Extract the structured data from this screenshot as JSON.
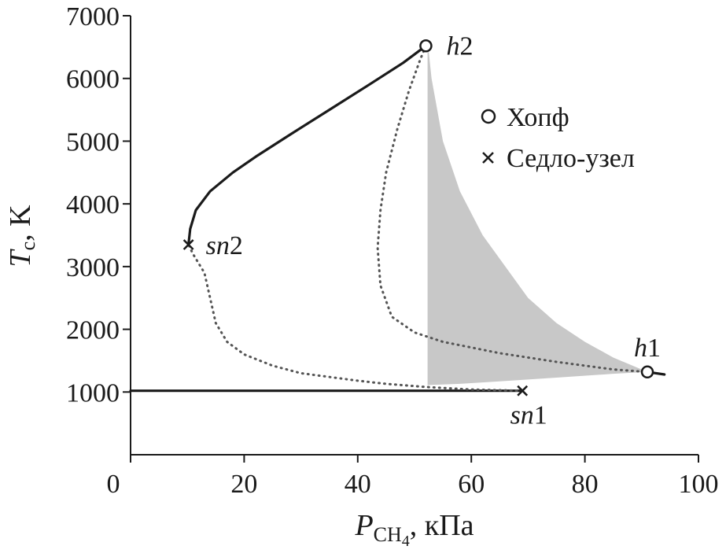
{
  "chart_data": {
    "type": "line",
    "xlabel": {
      "main": "P",
      "sub": "CH",
      "subsub": "4",
      "unit": ", кПа"
    },
    "ylabel": {
      "main": "T",
      "sub": "c",
      "unit": ", K"
    },
    "xlim": [
      0,
      100
    ],
    "ylim": [
      0,
      7000
    ],
    "x_ticks": [
      0,
      20,
      40,
      60,
      80,
      100
    ],
    "y_ticks": [
      1000,
      2000,
      3000,
      4000,
      5000,
      6000,
      7000
    ],
    "grid": false,
    "legend": {
      "placement": "top-right",
      "entries": [
        {
          "marker": "circle",
          "label": "Хопф"
        },
        {
          "marker": "cross",
          "label": "Седло-узел"
        }
      ]
    },
    "series": [
      {
        "style": "solid",
        "color": "#1a1a1a",
        "points": [
          [
            0,
            1020
          ],
          [
            10,
            1020
          ],
          [
            20,
            1020
          ],
          [
            30,
            1020
          ],
          [
            40,
            1020
          ],
          [
            50,
            1020
          ],
          [
            60,
            1020
          ],
          [
            69,
            1020
          ]
        ]
      },
      {
        "style": "dotted",
        "color": "#555555",
        "points": [
          [
            69,
            1020
          ],
          [
            60,
            1040
          ],
          [
            52,
            1080
          ],
          [
            45,
            1130
          ],
          [
            40,
            1180
          ],
          [
            30,
            1300
          ],
          [
            25,
            1420
          ],
          [
            20,
            1600
          ],
          [
            17,
            1800
          ],
          [
            15,
            2100
          ],
          [
            14,
            2500
          ],
          [
            13,
            2900
          ],
          [
            11,
            3200
          ],
          [
            10.2,
            3350
          ]
        ]
      },
      {
        "style": "solid",
        "color": "#1a1a1a",
        "points": [
          [
            10.2,
            3350
          ],
          [
            10.5,
            3600
          ],
          [
            11.5,
            3900
          ],
          [
            14,
            4200
          ],
          [
            18,
            4500
          ],
          [
            22,
            4750
          ],
          [
            28,
            5100
          ],
          [
            35,
            5500
          ],
          [
            42,
            5900
          ],
          [
            48,
            6250
          ],
          [
            52,
            6520
          ]
        ]
      },
      {
        "style": "dotted",
        "color": "#555555",
        "points": [
          [
            52,
            6520
          ],
          [
            51,
            6300
          ],
          [
            49,
            5800
          ],
          [
            47,
            5200
          ],
          [
            45,
            4500
          ],
          [
            44,
            3900
          ],
          [
            43.5,
            3300
          ],
          [
            44,
            2700
          ],
          [
            46,
            2200
          ],
          [
            50,
            1950
          ],
          [
            55,
            1800
          ],
          [
            65,
            1620
          ],
          [
            75,
            1480
          ],
          [
            85,
            1360
          ],
          [
            91,
            1320
          ]
        ]
      },
      {
        "style": "solid",
        "color": "#1a1a1a",
        "points": [
          [
            91,
            1320
          ],
          [
            94,
            1280
          ]
        ]
      }
    ],
    "shaded_region": {
      "color": "#c8c8c8",
      "points": [
        [
          52.3,
          6600
        ],
        [
          53,
          6000
        ],
        [
          55,
          5000
        ],
        [
          58,
          4200
        ],
        [
          62,
          3500
        ],
        [
          66,
          3000
        ],
        [
          70,
          2500
        ],
        [
          75,
          2100
        ],
        [
          80,
          1800
        ],
        [
          85,
          1550
        ],
        [
          90,
          1360
        ],
        [
          91,
          1320
        ],
        [
          85,
          1290
        ],
        [
          75,
          1230
        ],
        [
          65,
          1170
        ],
        [
          58,
          1130
        ],
        [
          52.3,
          1110
        ]
      ]
    },
    "annotations": [
      {
        "text": "h2",
        "x": 52,
        "y": 6520,
        "marker": "circle"
      },
      {
        "text": "h1",
        "x": 91,
        "y": 1320,
        "marker": "circle"
      },
      {
        "text": "sn2",
        "x": 10.2,
        "y": 3350,
        "marker": "cross"
      },
      {
        "text": "sn1",
        "x": 69,
        "y": 1020,
        "marker": "cross"
      }
    ]
  }
}
